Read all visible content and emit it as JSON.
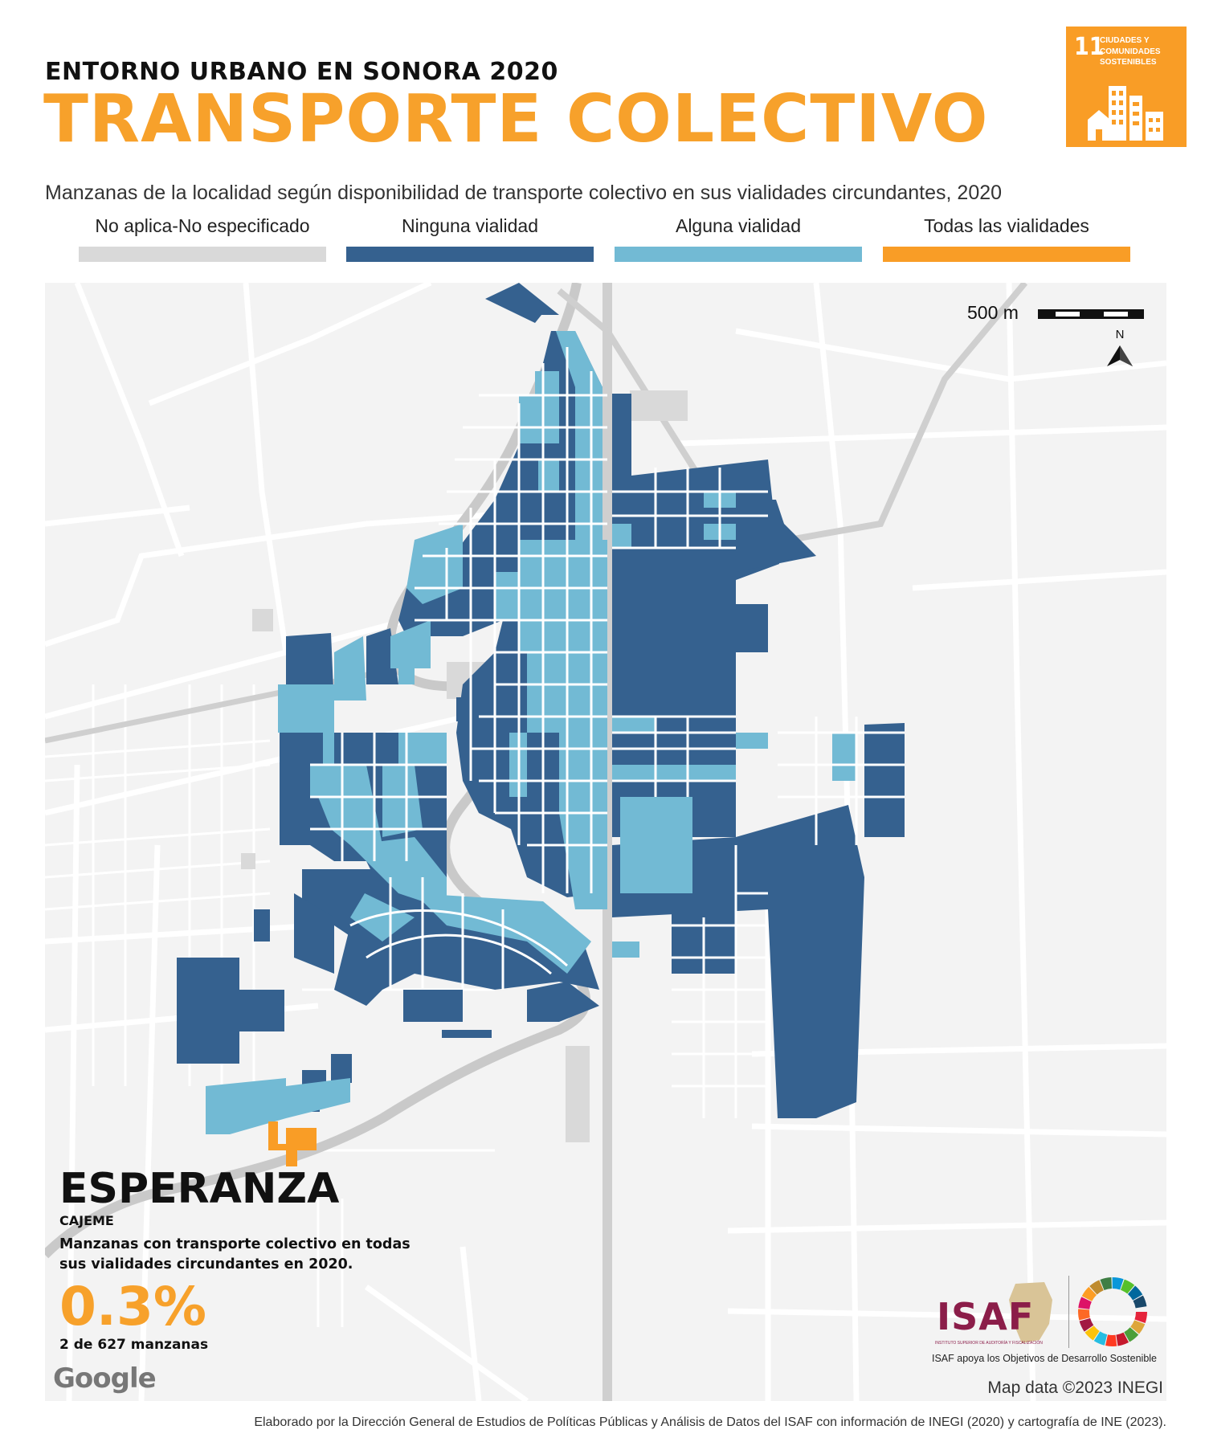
{
  "header": {
    "supertitle": "ENTORNO URBANO EN SONORA 2020",
    "title": "TRANSPORTE COLECTIVO",
    "subtitle": "Manzanas de la localidad según disponibilidad de  transporte colectivo en sus vialidades circundantes, 2020"
  },
  "sdg_badge": {
    "number": "11",
    "label": "CIUDADES Y COMUNIDADES SOSTENIBLES",
    "color": "#f99d26"
  },
  "legend": [
    {
      "label": "No aplica-No especificado",
      "color": "#d9d9d9"
    },
    {
      "label": "Ninguna vialidad",
      "color": "#35618f"
    },
    {
      "label": "Alguna vialidad",
      "color": "#72bad4"
    },
    {
      "label": "Todas las vialidades",
      "color": "#f99d26"
    }
  ],
  "map": {
    "scale_label": "500 m",
    "north_label": "N",
    "attribution": "Map data ©2023 INEGI",
    "provider": "Google"
  },
  "locality": {
    "name": "ESPERANZA",
    "municipality": "CAJEME",
    "description": "Manzanas con transporte colectivo en todas sus vialidades circundantes en 2020.",
    "percentage": "0.3%",
    "count": "2 de 627 manzanas"
  },
  "isaf": {
    "logo": "ISAF",
    "fullname": "INSTITUTO SUPERIOR DE AUDITORÍA Y FISCALIZACIÓN",
    "tagline": "ISAF apoya los Objetivos de Desarrollo Sostenible"
  },
  "footer": "Elaborado por la Dirección General de Estudios de Políticas Públicas y Análisis de Datos del ISAF con información de INEGI (2020) y cartografía de INE (2023)."
}
